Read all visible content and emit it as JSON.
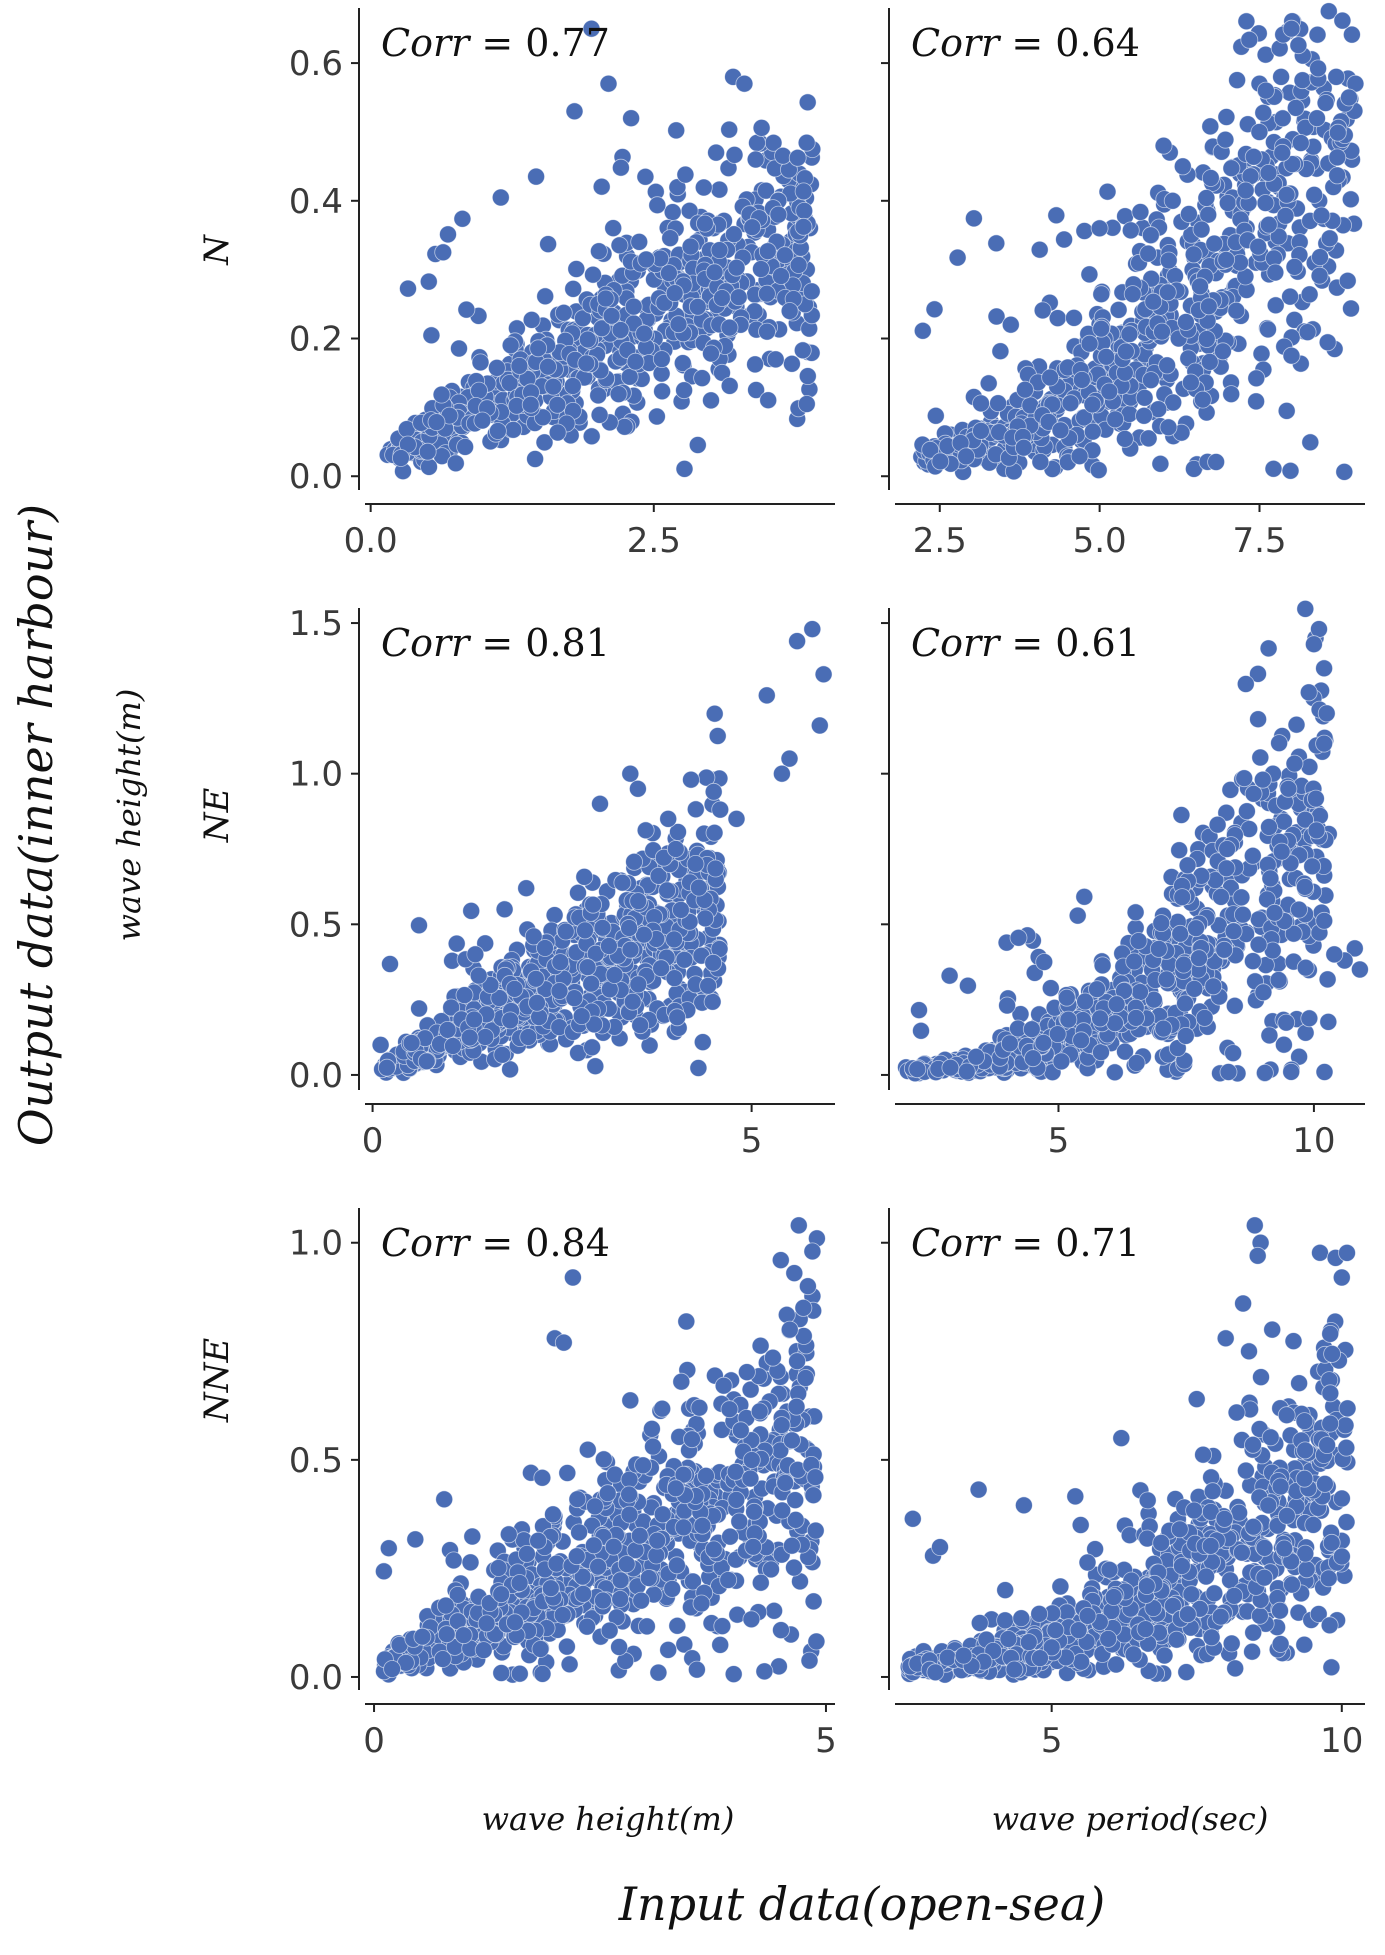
{
  "figure": {
    "y_label": "Output data(inner harbour)",
    "x_label": "Input data(open-sea)",
    "y_sub_label": "wave height(m)",
    "x_sub_labels": [
      "wave height(m)",
      "wave period(sec)"
    ],
    "row_labels": [
      "N",
      "NE",
      "NNE"
    ],
    "corr_prefix": "Corr",
    "point_color": "#4a6db5"
  },
  "chart_data": [
    {
      "type": "scatter",
      "row": "N",
      "xlabel": "wave height(m)",
      "ylabel": "wave height(m)",
      "corr": "0.77",
      "xlim": [
        -0.05,
        4.1
      ],
      "ylim": [
        -0.02,
        0.68
      ],
      "xticks": [
        0.0,
        2.5
      ],
      "xtick_labels": [
        "0.0",
        "2.5"
      ],
      "yticks": [
        0.0,
        0.2,
        0.4,
        0.6
      ],
      "ytick_labels": [
        "0.0",
        "0.2",
        "0.4",
        "0.6"
      ],
      "gen": {
        "kind": "height",
        "xmin": 0.15,
        "xmax": 3.9,
        "n": 700,
        "slope": 0.085,
        "intercept": 0.01,
        "spread": 0.6,
        "extra_max": 0.65,
        "seed": 11
      },
      "outliers": [
        [
          1.95,
          0.65
        ],
        [
          2.1,
          0.57
        ],
        [
          1.8,
          0.53
        ],
        [
          2.3,
          0.52
        ],
        [
          3.2,
          0.58
        ],
        [
          3.3,
          0.57
        ],
        [
          3.05,
          0.47
        ],
        [
          3.4,
          0.46
        ],
        [
          3.7,
          0.24
        ],
        [
          3.5,
          0.21
        ],
        [
          3.6,
          0.38
        ],
        [
          3.25,
          0.26
        ]
      ]
    },
    {
      "type": "scatter",
      "row": "N",
      "xlabel": "wave period(sec)",
      "ylabel": "wave height(m)",
      "corr": "0.64",
      "xlim": [
        1.8,
        9.15
      ],
      "ylim": [
        -0.02,
        0.68
      ],
      "xticks": [
        2.5,
        5.0,
        7.5
      ],
      "xtick_labels": [
        "2.5",
        "5.0",
        "7.5"
      ],
      "yticks": [
        0.0,
        0.2,
        0.4,
        0.6
      ],
      "ytick_labels": [
        "",
        "",
        "",
        ""
      ],
      "gen": {
        "kind": "period",
        "xmin": 2.2,
        "xmax": 9.0,
        "n": 750,
        "base": 0.02,
        "scale": 0.018,
        "power": 1.7,
        "x0": 2.0,
        "spread": 0.75,
        "extra_max": 0.6,
        "seed": 23
      },
      "outliers": [
        [
          8.0,
          0.65
        ],
        [
          8.7,
          0.58
        ],
        [
          9.0,
          0.57
        ],
        [
          7.5,
          0.57
        ],
        [
          7.6,
          0.56
        ],
        [
          8.4,
          0.52
        ],
        [
          6.0,
          0.48
        ],
        [
          6.3,
          0.45
        ],
        [
          5.0,
          0.36
        ],
        [
          5.8,
          0.35
        ],
        [
          8.9,
          0.55
        ],
        [
          4.6,
          0.23
        ]
      ]
    },
    {
      "type": "scatter",
      "row": "NE",
      "xlabel": "wave height(m)",
      "ylabel": "wave height(m)",
      "corr": "0.81",
      "xlim": [
        -0.1,
        6.1
      ],
      "ylim": [
        -0.05,
        1.55
      ],
      "xticks": [
        0,
        5
      ],
      "xtick_labels": [
        "0",
        "5"
      ],
      "yticks": [
        0.0,
        0.5,
        1.0,
        1.5
      ],
      "ytick_labels": [
        "0.0",
        "0.5",
        "1.0",
        "1.5"
      ],
      "gen": {
        "kind": "height",
        "xmin": 0.1,
        "xmax": 4.6,
        "n": 750,
        "slope": 0.12,
        "intercept": 0.0,
        "spread": 0.7,
        "extra_max": 0.9,
        "seed": 37
      },
      "outliers": [
        [
          5.6,
          1.44
        ],
        [
          5.8,
          1.48
        ],
        [
          5.95,
          1.33
        ],
        [
          5.2,
          1.26
        ],
        [
          5.9,
          1.16
        ],
        [
          5.5,
          1.05
        ],
        [
          5.4,
          1.0
        ],
        [
          3.4,
          1.0
        ],
        [
          3.5,
          0.95
        ],
        [
          4.2,
          0.98
        ],
        [
          4.5,
          0.94
        ],
        [
          4.8,
          0.85
        ],
        [
          3.0,
          0.9
        ],
        [
          3.9,
          0.85
        ],
        [
          4.0,
          0.75
        ]
      ]
    },
    {
      "type": "scatter",
      "row": "NE",
      "xlabel": "wave period(sec)",
      "ylabel": "wave height(m)",
      "corr": "0.61",
      "xlim": [
        1.8,
        11.0
      ],
      "ylim": [
        -0.05,
        1.55
      ],
      "xticks": [
        5,
        10
      ],
      "xtick_labels": [
        "5",
        "10"
      ],
      "yticks": [
        0.0,
        0.5,
        1.0,
        1.5
      ],
      "ytick_labels": [
        "",
        "",
        "",
        ""
      ],
      "gen": {
        "kind": "period",
        "xmin": 2.0,
        "xmax": 10.3,
        "n": 800,
        "base": 0.01,
        "scale": 0.012,
        "power": 2.0,
        "x0": 2.0,
        "spread": 0.85,
        "extra_max": 0.9,
        "seed": 53
      },
      "outliers": [
        [
          10.1,
          1.48
        ],
        [
          10.0,
          1.43
        ],
        [
          10.2,
          1.35
        ],
        [
          9.9,
          1.27
        ],
        [
          10.25,
          1.2
        ],
        [
          10.2,
          1.1
        ],
        [
          9.2,
          1.0
        ],
        [
          9.5,
          0.95
        ],
        [
          9.0,
          0.98
        ],
        [
          10.8,
          0.42
        ],
        [
          10.6,
          0.38
        ],
        [
          10.4,
          0.4
        ],
        [
          10.9,
          0.35
        ],
        [
          8.3,
          0.75
        ]
      ]
    },
    {
      "type": "scatter",
      "row": "NNE",
      "xlabel": "wave height(m)",
      "ylabel": "wave height(m)",
      "corr": "0.84",
      "xlim": [
        -0.1,
        5.1
      ],
      "ylim": [
        -0.03,
        1.08
      ],
      "xticks": [
        0,
        5
      ],
      "xtick_labels": [
        "0",
        "5"
      ],
      "yticks": [
        0.0,
        0.5,
        1.0
      ],
      "ytick_labels": [
        "0.0",
        "0.5",
        "1.0"
      ],
      "gen": {
        "kind": "height",
        "xmin": 0.1,
        "xmax": 4.9,
        "n": 800,
        "slope": 0.095,
        "intercept": 0.01,
        "spread": 0.85,
        "extra_max": 0.7,
        "seed": 71
      },
      "outliers": [
        [
          4.7,
          1.04
        ],
        [
          4.9,
          1.01
        ],
        [
          4.85,
          0.98
        ],
        [
          4.5,
          0.96
        ],
        [
          4.65,
          0.93
        ],
        [
          4.8,
          0.9
        ],
        [
          4.75,
          0.85
        ],
        [
          4.6,
          0.8
        ],
        [
          2.2,
          0.92
        ],
        [
          2.0,
          0.78
        ],
        [
          2.1,
          0.77
        ],
        [
          3.4,
          0.68
        ],
        [
          3.6,
          0.62
        ]
      ]
    },
    {
      "type": "scatter",
      "row": "NNE",
      "xlabel": "wave period(sec)",
      "ylabel": "wave height(m)",
      "corr": "0.71",
      "xlim": [
        2.3,
        10.4
      ],
      "ylim": [
        -0.03,
        1.08
      ],
      "xticks": [
        5,
        10
      ],
      "xtick_labels": [
        "5",
        "10"
      ],
      "yticks": [
        0.0,
        0.5,
        1.0
      ],
      "ytick_labels": [
        "",
        "",
        "",
        ""
      ],
      "gen": {
        "kind": "period",
        "xmin": 2.5,
        "xmax": 10.1,
        "n": 850,
        "base": 0.02,
        "scale": 0.0075,
        "power": 2.0,
        "x0": 2.3,
        "spread": 0.9,
        "extra_max": 0.7,
        "seed": 89
      },
      "outliers": [
        [
          8.5,
          1.04
        ],
        [
          8.6,
          1.0
        ],
        [
          8.55,
          0.97
        ],
        [
          10.0,
          0.92
        ],
        [
          8.3,
          0.86
        ],
        [
          8.8,
          0.8
        ],
        [
          8.0,
          0.78
        ],
        [
          8.4,
          0.75
        ],
        [
          9.8,
          0.79
        ],
        [
          7.5,
          0.64
        ],
        [
          6.2,
          0.55
        ],
        [
          5.5,
          0.35
        ],
        [
          4.2,
          0.2
        ]
      ]
    }
  ]
}
